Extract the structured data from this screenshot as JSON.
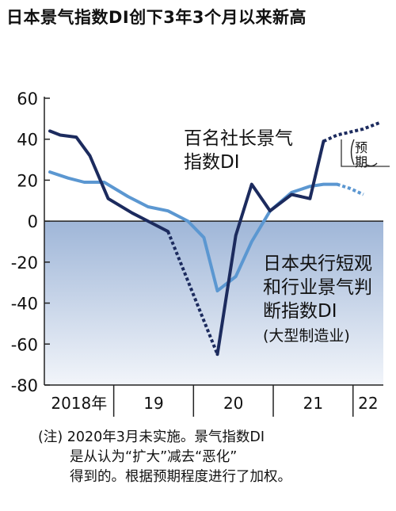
{
  "title": "日本景气指数DI创下3年3个月以来新高",
  "note": {
    "line1": "(注) 2020年3月未实施。景气指数DI",
    "line2": "是从认为“扩大”减去“恶化”",
    "line3": "得到的。根据预期程度进行了加权。"
  },
  "chart_data": {
    "type": "line",
    "ylim": [
      -80,
      60
    ],
    "y_ticks": [
      "60",
      "40",
      "20",
      "0",
      "-20",
      "-40",
      "-60",
      "-80"
    ],
    "y_tick_values": [
      60,
      40,
      20,
      0,
      -20,
      -40,
      -60,
      -80
    ],
    "x_tick_labels": [
      "2018年",
      "19",
      "20",
      "21",
      "22"
    ],
    "x_range": [
      2018.05,
      2022.3
    ],
    "x_boundaries": [
      2018.92,
      2019.92,
      2020.92,
      2021.92
    ],
    "forecast_label": "(预期)",
    "legend_placement": "inline labels",
    "series": [
      {
        "name": "百名社长景气指数DI",
        "label_lines": [
          "百名社长景气",
          "指数DI"
        ],
        "color": "#1c2b5e",
        "points": [
          [
            2018.12,
            44
          ],
          [
            2018.25,
            42
          ],
          [
            2018.45,
            41
          ],
          [
            2018.62,
            32
          ],
          [
            2018.85,
            11
          ],
          [
            2019.15,
            4
          ],
          [
            2019.35,
            0
          ],
          [
            2019.6,
            -5
          ]
        ],
        "gap_points": [
          [
            2019.6,
            -5
          ],
          [
            2020.22,
            -65
          ]
        ],
        "points_after": [
          [
            2020.22,
            -65
          ],
          [
            2020.45,
            -7
          ],
          [
            2020.65,
            18
          ],
          [
            2020.88,
            5
          ],
          [
            2021.15,
            13
          ],
          [
            2021.38,
            11
          ],
          [
            2021.55,
            39
          ]
        ],
        "forecast_points": [
          [
            2021.55,
            39
          ],
          [
            2021.72,
            42
          ],
          [
            2022.05,
            45
          ],
          [
            2022.25,
            48
          ]
        ]
      },
      {
        "name": "日本央行短观和行业景气判断指数DI",
        "label_lines": [
          "日本央行短观",
          "和行业景气判",
          "断指数DI",
          "(大型制造业)"
        ],
        "color": "#5b97d1",
        "points": [
          [
            2018.12,
            24
          ],
          [
            2018.35,
            21
          ],
          [
            2018.55,
            19
          ],
          [
            2018.8,
            19
          ],
          [
            2019.1,
            12
          ],
          [
            2019.35,
            7
          ],
          [
            2019.6,
            5
          ],
          [
            2019.85,
            0
          ],
          [
            2020.05,
            -8
          ],
          [
            2020.22,
            -34
          ],
          [
            2020.45,
            -27
          ],
          [
            2020.65,
            -10
          ],
          [
            2020.88,
            5
          ],
          [
            2021.15,
            14
          ],
          [
            2021.38,
            17
          ],
          [
            2021.55,
            18
          ],
          [
            2021.72,
            18
          ]
        ],
        "forecast_points": [
          [
            2021.72,
            18
          ],
          [
            2021.88,
            16
          ],
          [
            2022.05,
            13
          ]
        ]
      }
    ]
  }
}
